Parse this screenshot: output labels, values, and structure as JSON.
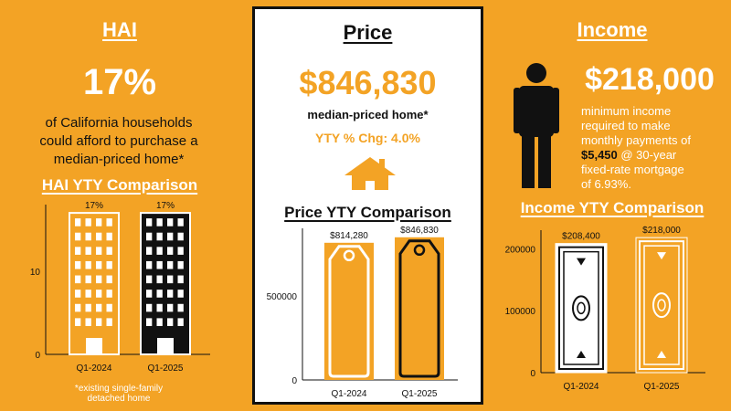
{
  "hai": {
    "title": "HAI",
    "value": "17%",
    "description": "of California households could afford to purchase a median-priced home*",
    "comparison_title": "HAI YTY Comparison",
    "footnote": "*existing single-family detached home"
  },
  "price": {
    "title": "Price",
    "value": "$846,830",
    "subtitle": "median-priced home*",
    "yty_change": "YTY % Chg: 4.0%",
    "comparison_title": "Price YTY Comparison"
  },
  "income": {
    "title": "Income",
    "value": "$218,000",
    "description_line1": "minimum income",
    "description_line2": "required to make",
    "description_line3": "monthly payments of",
    "description_payment": "$5,450",
    "description_line4_rest": " @ 30-year",
    "description_line5": "fixed-rate mortgage",
    "description_line6": "of 6.93%.",
    "comparison_title": "Income YTY Comparison"
  },
  "colors": {
    "background": "#F3A325",
    "accent": "#F3A325",
    "dark": "#111111",
    "white": "#FFFFFF"
  },
  "icons": {
    "house": "house-icon",
    "person": "person-icon",
    "building": "building-icon",
    "price_tag": "price-tag-icon",
    "banknote": "banknote-icon"
  },
  "chart_data": [
    {
      "type": "bar",
      "title": "HAI YTY Comparison",
      "categories": [
        "Q1-2024",
        "Q1-2025"
      ],
      "values": [
        17,
        17
      ],
      "data_labels": [
        "17%",
        "17%"
      ],
      "y_ticks": [
        "0",
        "10"
      ],
      "ylim": [
        0,
        18
      ],
      "grid": false
    },
    {
      "type": "bar",
      "title": "Price YTY Comparison",
      "categories": [
        "Q1-2024",
        "Q1-2025"
      ],
      "values": [
        814280,
        846830
      ],
      "data_labels": [
        "$814,280",
        "$846,830"
      ],
      "y_ticks": [
        "0",
        "500000"
      ],
      "ylim": [
        0,
        900000
      ],
      "grid": false
    },
    {
      "type": "bar",
      "title": "Income YTY Comparison",
      "categories": [
        "Q1-2024",
        "Q1-2025"
      ],
      "values": [
        208400,
        218000
      ],
      "data_labels": [
        "$208,400",
        "$218,000"
      ],
      "y_ticks": [
        "0",
        "100000",
        "200000"
      ],
      "ylim": [
        0,
        230000
      ],
      "grid": false
    }
  ]
}
